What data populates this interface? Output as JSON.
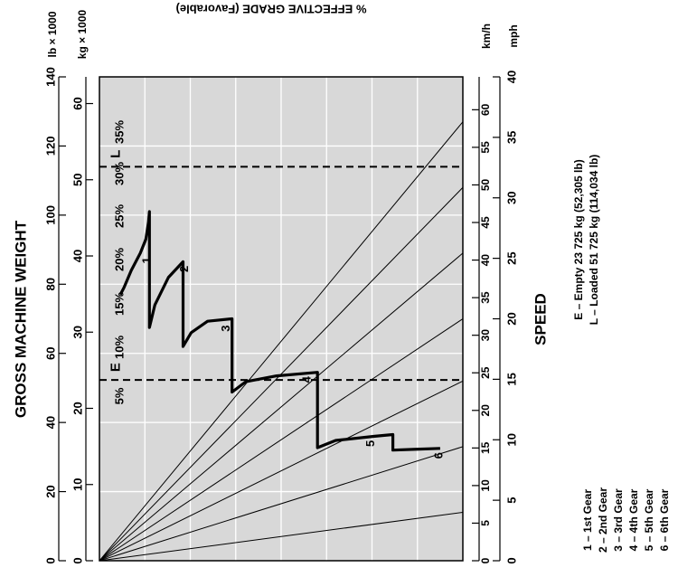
{
  "chart_data": {
    "type": "line",
    "title": "",
    "weight_axis_title": "GROSS MACHINE WEIGHT",
    "speed_axis_title": "SPEED",
    "grade_axis_title": "% EFFECTIVE GRADE (Favorable)",
    "units": {
      "lb": "lb × 1000",
      "kg": "kg × 1000",
      "kmh": "km/h",
      "mph": "mph"
    },
    "lb_ticks": [
      0,
      20,
      40,
      60,
      80,
      100,
      120,
      140
    ],
    "kg_ticks": [
      0,
      10,
      20,
      30,
      40,
      50,
      60
    ],
    "kmh_ticks": [
      0,
      5,
      10,
      15,
      20,
      25,
      30,
      35,
      40,
      45,
      50,
      55,
      60
    ],
    "mph_ticks": [
      0,
      5,
      10,
      15,
      20,
      25,
      30,
      35,
      40
    ],
    "weight_range_lb": [
      0,
      140
    ],
    "speed_range_mph": [
      0,
      40
    ],
    "grades": [
      {
        "label": "35%",
        "weight_lb_at_max_speed": 127
      },
      {
        "label": "30%",
        "weight_lb_at_max_speed": 108
      },
      {
        "label": "25%",
        "weight_lb_at_max_speed": 89
      },
      {
        "label": "20%",
        "weight_lb_at_max_speed": 70
      },
      {
        "label": "15%",
        "weight_lb_at_max_speed": 52
      },
      {
        "label": "10%",
        "weight_lb_at_max_speed": 33
      },
      {
        "label": "5%",
        "weight_lb_at_max_speed": 14
      }
    ],
    "series": [
      {
        "name": "rimpull",
        "points": [
          [
            2.3,
            77
          ],
          [
            2.7,
            79
          ],
          [
            3.5,
            84
          ],
          [
            4.5,
            89
          ],
          [
            5.1,
            93
          ],
          [
            5.4,
            98
          ],
          [
            5.5,
            101
          ],
          [
            5.5,
            67.5
          ],
          [
            6.1,
            74
          ],
          [
            7.6,
            82
          ],
          [
            9.2,
            86.5
          ],
          [
            9.2,
            62
          ],
          [
            10.1,
            66
          ],
          [
            11.9,
            69.3
          ],
          [
            14.6,
            70
          ],
          [
            14.6,
            48.8
          ],
          [
            16.1,
            51.8
          ],
          [
            19.5,
            53.5
          ],
          [
            24,
            54.5
          ],
          [
            24,
            32.7
          ],
          [
            26,
            34.8
          ],
          [
            30.3,
            36
          ],
          [
            32.3,
            36.5
          ],
          [
            32.3,
            32
          ],
          [
            34.5,
            32.2
          ],
          [
            37.5,
            32.5
          ]
        ]
      }
    ],
    "reference_lines": [
      {
        "label": "E",
        "weight_lb": 52.3
      },
      {
        "label": "L",
        "weight_lb": 114
      }
    ],
    "gear_labels": [
      {
        "label": "1",
        "speed_mph": 4.4
      },
      {
        "label": "2",
        "speed_mph": 8.5
      },
      {
        "label": "3",
        "speed_mph": 13.1
      },
      {
        "label": "4",
        "speed_mph": 22
      },
      {
        "label": "5",
        "speed_mph": 29
      },
      {
        "label": "6",
        "speed_mph": 36.5
      }
    ],
    "legend_weights": [
      "E – Empty 23 725 kg (52,305 lb)",
      "L – Loaded 51 725 kg (114,034 lb)"
    ],
    "legend_gears": [
      "1 – 1st Gear",
      "2 – 2nd Gear",
      "3 – 3rd Gear",
      "4 – 4th Gear",
      "5 – 5th Gear",
      "6 – 6th Gear"
    ],
    "colors": {
      "plot_background": "#d8d8d8",
      "grid": "#ffffff",
      "line": "#000000"
    }
  }
}
